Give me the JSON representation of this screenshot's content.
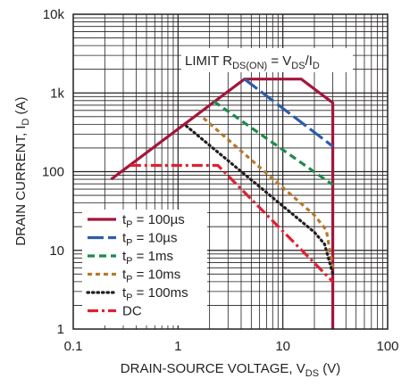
{
  "chart_data": {
    "type": "line",
    "title": "",
    "xlabel": "DRAIN-SOURCE VOLTAGE, V",
    "xlabel_sub": "DS",
    "xlabel_unit": " (V)",
    "ylabel": "DRAIN CURRENT, I",
    "ylabel_sub": "D",
    "ylabel_unit": " (A)",
    "x_scale": "log",
    "y_scale": "log",
    "xlim": [
      0.1,
      100
    ],
    "ylim": [
      1,
      10000
    ],
    "x_ticks": [
      0.1,
      1,
      10,
      100
    ],
    "x_tick_labels": [
      "0.1",
      "1",
      "10",
      "100"
    ],
    "y_ticks": [
      1,
      10,
      100,
      1000,
      10000
    ],
    "y_tick_labels": [
      "1",
      "10",
      "100",
      "1k",
      "10k"
    ],
    "grid": true,
    "legend_placement": "bottom-left",
    "annotation": {
      "text_prefix": "LIMIT R",
      "text_sub1": "DS(ON)",
      "text_mid": " = V",
      "text_sub2": "DS",
      "text_suffix": "/I",
      "text_sub3": "D"
    },
    "series": [
      {
        "name": "tP = 100µs",
        "legend_main": "t",
        "legend_sub": "P",
        "legend_rest": " = 100µs",
        "color": "#a3163b",
        "dash": "solid",
        "x": [
          0.23,
          4.3,
          15,
          30,
          30
        ],
        "y": [
          80,
          1500,
          1500,
          750,
          1
        ]
      },
      {
        "name": "tP = 10µs",
        "legend_main": "t",
        "legend_sub": "P",
        "legend_rest": " = 10µs",
        "color": "#2e5da8",
        "dash": "long-dash",
        "x": [
          4.3,
          30
        ],
        "y": [
          1500,
          210
        ]
      },
      {
        "name": "tP = 1ms",
        "legend_main": "t",
        "legend_sub": "P",
        "legend_rest": " = 1ms",
        "color": "#1f8a4c",
        "dash": "dash",
        "x": [
          2.2,
          30
        ],
        "y": [
          780,
          68
        ]
      },
      {
        "name": "tP = 10ms",
        "legend_main": "t",
        "legend_sub": "P",
        "legend_rest": " = 10ms",
        "color": "#b8792d",
        "dash": "short-dash",
        "x": [
          1.75,
          20,
          26,
          30
        ],
        "y": [
          480,
          28,
          18,
          6
        ]
      },
      {
        "name": "tP = 100ms",
        "legend_main": "t",
        "legend_sub": "P",
        "legend_rest": " = 100ms",
        "color": "#231f20",
        "dash": "dot",
        "x": [
          1.2,
          20,
          25,
          30
        ],
        "y": [
          380,
          17,
          12,
          5
        ]
      },
      {
        "name": "DC",
        "legend_main": "DC",
        "legend_sub": "",
        "legend_rest": "",
        "color": "#e0202f",
        "dash": "dash-dot",
        "x": [
          0.35,
          2.4,
          30
        ],
        "y": [
          120,
          120,
          4
        ]
      }
    ]
  }
}
